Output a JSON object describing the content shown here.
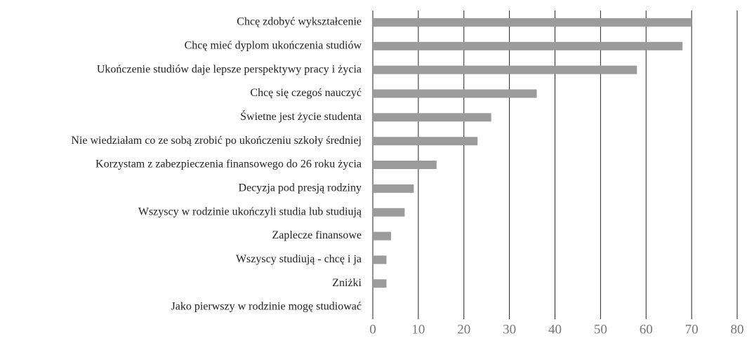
{
  "chart_data": {
    "type": "bar",
    "orientation": "horizontal",
    "categories": [
      "Chcę zdobyć wykształcenie",
      "Chcę mieć dyplom ukończenia studiów",
      "Ukończenie studiów daje lepsze perspektywy pracy i życia",
      "Chcę się czegoś nauczyć",
      "Świetne jest życie studenta",
      "Nie wiedziałam co ze sobą zrobić po ukończeniu szkoły średniej",
      "Korzystam z zabezpieczenia finansowego do 26 roku życia",
      "Decyzja pod presją rodziny",
      "Wszyscy w rodzinie ukończyli studia lub studiują",
      "Zaplecze finansowe",
      "Wszyscy studiują - chcę i ja",
      "Zniżki",
      "Jako pierwszy w rodzinie mogę studiować"
    ],
    "values": [
      70,
      68,
      58,
      36,
      26,
      23,
      14,
      9,
      7,
      4,
      3,
      3,
      0
    ],
    "color": "#9b9b9b",
    "xlim": [
      0,
      80
    ],
    "xticks": [
      0,
      10,
      20,
      30,
      40,
      50,
      60,
      70,
      80
    ],
    "grid": true
  }
}
